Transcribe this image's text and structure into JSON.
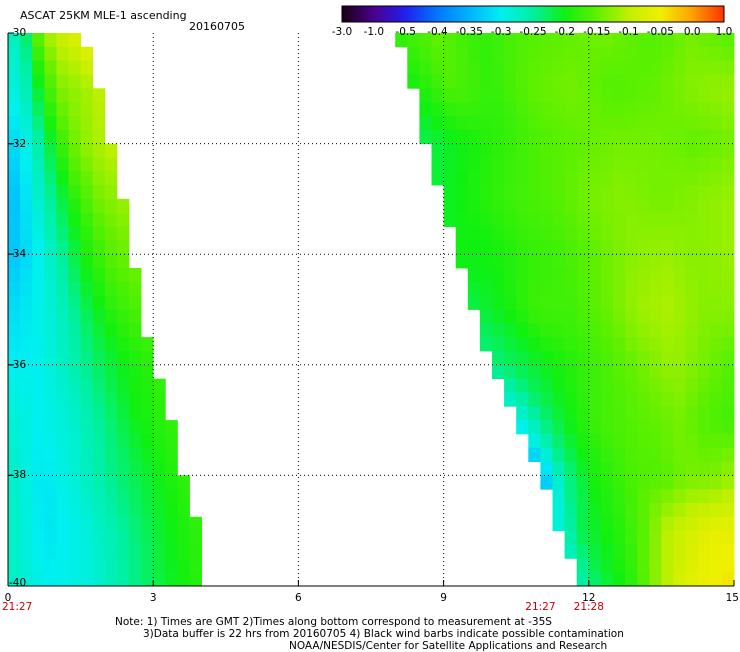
{
  "header": {
    "title": "ASCAT 25KM MLE-1 ascending",
    "date": "20160705"
  },
  "note": {
    "line1": "Note: 1) Times are GMT 2)Times along bottom correspond to measurement at -35S",
    "line2": "3)Data buffer is 22 hrs from 20160705 4) Black wind barbs indicate possible contamination",
    "line3": "NOAA/NESDIS/Center for Satellite Applications and Research"
  },
  "chart_data": {
    "type": "heatmap",
    "title": "ASCAT 25KM MLE-1 ascending",
    "date": "20160705",
    "xlim": [
      0,
      15
    ],
    "ylim": [
      -40,
      -30
    ],
    "x_ticks": [
      "0",
      "3",
      "6",
      "9",
      "12",
      "15"
    ],
    "y_ticks": [
      "-30",
      "-32",
      "-34",
      "-36",
      "-38",
      "-40"
    ],
    "grid": true,
    "colorbar": {
      "labels": [
        "-3.0",
        "-1.0",
        "-0.5",
        "-0.4",
        "-0.35",
        "-0.3",
        "-0.25",
        "-0.2",
        "-0.15",
        "-0.1",
        "-0.05",
        "0.0",
        "1.0"
      ],
      "colors": [
        "#1a0010",
        "#4a0090",
        "#2020f0",
        "#0078ff",
        "#00b4ff",
        "#00f0f0",
        "#00f0a0",
        "#10f010",
        "#60f000",
        "#c0f000",
        "#f0f000",
        "#ffa000",
        "#ff3000"
      ]
    },
    "time_labels": [
      {
        "x": 0,
        "label": "21:27"
      },
      {
        "x": 11,
        "label": "21:27"
      },
      {
        "x": 12,
        "label": "21:28"
      }
    ],
    "swaths": [
      {
        "name": "west",
        "right_edge": [
          [
            -30,
            1.55
          ],
          [
            -31,
            1.9
          ],
          [
            -32,
            2.1
          ],
          [
            -33,
            2.35
          ],
          [
            -34,
            2.55
          ],
          [
            -35,
            2.75
          ],
          [
            -36,
            3.05
          ],
          [
            -37,
            3.35
          ],
          [
            -38,
            3.65
          ],
          [
            -39,
            3.95
          ],
          [
            -40,
            4.1
          ]
        ],
        "value_grid": [
          [
            -0.28,
            -0.25,
            -0.15,
            -0.1,
            -0.08,
            -0.05
          ],
          [
            -0.3,
            -0.26,
            -0.18,
            -0.13,
            -0.12,
            -0.1
          ],
          [
            -0.33,
            -0.29,
            -0.22,
            -0.15,
            -0.12,
            -0.1
          ],
          [
            -0.35,
            -0.3,
            -0.24,
            -0.18,
            -0.14,
            -0.12
          ],
          [
            -0.34,
            -0.31,
            -0.26,
            -0.2,
            -0.16,
            -0.14
          ],
          [
            -0.32,
            -0.3,
            -0.27,
            -0.22,
            -0.18,
            -0.16
          ],
          [
            -0.3,
            -0.3,
            -0.27,
            -0.23,
            -0.2,
            -0.18
          ],
          [
            -0.28,
            -0.3,
            -0.28,
            -0.24,
            -0.2,
            -0.18
          ],
          [
            -0.27,
            -0.31,
            -0.28,
            -0.24,
            -0.21,
            -0.18
          ],
          [
            -0.27,
            -0.31,
            -0.29,
            -0.25,
            -0.21,
            -0.18
          ],
          [
            -0.27,
            -0.3,
            -0.29,
            -0.25,
            -0.21,
            -0.18
          ]
        ]
      },
      {
        "name": "east",
        "left_edge": [
          [
            -30,
            8.0
          ],
          [
            -31,
            8.35
          ],
          [
            -32,
            8.65
          ],
          [
            -33,
            8.95
          ],
          [
            -34,
            9.25
          ],
          [
            -35,
            9.6
          ],
          [
            -36,
            10.0
          ],
          [
            -37,
            10.5
          ],
          [
            -38,
            11.0
          ],
          [
            -39,
            11.4
          ],
          [
            -40,
            11.9
          ]
        ],
        "value_grid": [
          [
            -0.18,
            -0.15,
            -0.18,
            -0.16,
            -0.15,
            -0.14,
            -0.16,
            -0.14,
            -0.16
          ],
          [
            -0.2,
            -0.16,
            -0.18,
            -0.15,
            -0.14,
            -0.16,
            -0.15,
            -0.13,
            -0.12
          ],
          [
            -0.22,
            -0.2,
            -0.18,
            -0.16,
            -0.15,
            -0.14,
            -0.14,
            -0.15,
            -0.14
          ],
          [
            -0.21,
            -0.19,
            -0.17,
            -0.16,
            -0.14,
            -0.13,
            -0.14,
            -0.13,
            -0.12
          ],
          [
            -0.2,
            -0.2,
            -0.18,
            -0.17,
            -0.15,
            -0.13,
            -0.12,
            -0.13,
            -0.12
          ],
          [
            -0.22,
            -0.2,
            -0.17,
            -0.17,
            -0.15,
            -0.12,
            -0.11,
            -0.13,
            -0.13
          ],
          [
            -0.24,
            -0.22,
            -0.2,
            -0.18,
            -0.16,
            -0.14,
            -0.12,
            -0.14,
            -0.16
          ],
          [
            -0.3,
            -0.24,
            -0.2,
            -0.17,
            -0.16,
            -0.15,
            -0.14,
            -0.16,
            -0.17
          ],
          [
            -0.35,
            -0.25,
            -0.2,
            -0.18,
            -0.16,
            -0.16,
            -0.14,
            -0.14,
            -0.12
          ],
          [
            -0.28,
            -0.22,
            -0.2,
            -0.18,
            -0.15,
            -0.1,
            -0.08,
            -0.06,
            -0.06
          ],
          [
            -0.25,
            -0.22,
            -0.2,
            -0.17,
            -0.12,
            -0.08,
            -0.06,
            -0.05,
            -0.04
          ]
        ]
      }
    ]
  }
}
